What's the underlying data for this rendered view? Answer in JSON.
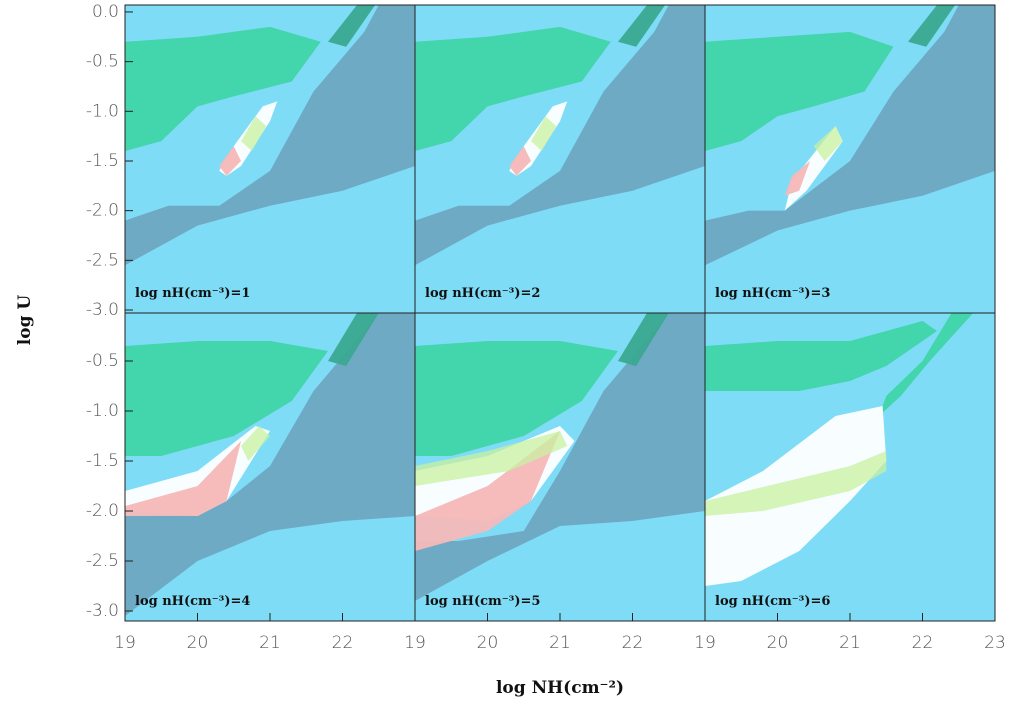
{
  "chart_data": {
    "type": "contour",
    "x_label": "log NH(cm⁻²)",
    "y_label": "log U",
    "background": "#7fdcf7",
    "panels": [
      {
        "label": "log nH(cm⁻³)=1",
        "xlim": [
          19,
          23
        ],
        "ylim": [
          -3.03,
          0.07
        ],
        "yticks": [
          {
            "value": 0,
            "label": "0.0"
          },
          -0.5,
          {
            "value": -1,
            "label": "-1.0"
          },
          -1.5,
          {
            "value": -2,
            "label": "-2.0"
          },
          -2.5,
          {
            "value": -3,
            "label": "-3.0"
          }
        ],
        "regions": [
          {
            "color": "#40d4a8",
            "x": [
              19,
              20,
              21,
              21.7,
              21.3,
              20.5,
              20,
              19.5,
              19
            ],
            "y": [
              -0.3,
              -0.25,
              -0.15,
              -0.3,
              -0.7,
              -0.85,
              -0.95,
              -1.3,
              -1.4
            ]
          },
          {
            "color": "#6fa6c2",
            "x": [
              19,
              20,
              21,
              22,
              23,
              23,
              22.5,
              22.3,
              21.6,
              21,
              20.3,
              19.6,
              19
            ],
            "y": [
              -2.55,
              -2.15,
              -1.95,
              -1.8,
              -1.55,
              0.07,
              0.07,
              -0.2,
              -0.8,
              -1.6,
              -1.95,
              -1.95,
              -2.1
            ]
          },
          {
            "color": "#3aa890",
            "x": [
              22.2,
              22.45,
              22.05,
              21.8
            ],
            "y": [
              0.07,
              0.07,
              -0.35,
              -0.3
            ]
          },
          {
            "color": "#ffffff",
            "x": [
              20.3,
              20.5,
              20.9,
              21.1,
              21,
              20.6,
              20.4
            ],
            "y": [
              -1.6,
              -1.35,
              -0.95,
              -0.9,
              -1.1,
              -1.55,
              -1.65
            ]
          },
          {
            "color": "#f5b8b8",
            "x": [
              20.3,
              20.5,
              20.6,
              20.4
            ],
            "y": [
              -1.55,
              -1.35,
              -1.5,
              -1.65
            ]
          },
          {
            "color": "#c8f0a0",
            "x": [
              20.6,
              20.8,
              20.95,
              20.75
            ],
            "y": [
              -1.3,
              -1.05,
              -1.15,
              -1.4
            ]
          }
        ]
      },
      {
        "label": "log nH(cm⁻³)=2",
        "xlim": [
          19,
          23
        ],
        "ylim": [
          -3.03,
          0.07
        ],
        "regions": [
          {
            "color": "#40d4a8",
            "x": [
              19,
              20,
              21,
              21.7,
              21.3,
              20.5,
              20,
              19.5,
              19
            ],
            "y": [
              -0.3,
              -0.25,
              -0.15,
              -0.3,
              -0.7,
              -0.85,
              -0.95,
              -1.3,
              -1.4
            ]
          },
          {
            "color": "#6fa6c2",
            "x": [
              19,
              20,
              21,
              22,
              23,
              23,
              22.5,
              22.3,
              21.6,
              21,
              20.3,
              19.6,
              19
            ],
            "y": [
              -2.55,
              -2.15,
              -1.95,
              -1.8,
              -1.55,
              0.07,
              0.07,
              -0.2,
              -0.8,
              -1.6,
              -1.95,
              -1.95,
              -2.1
            ]
          },
          {
            "color": "#3aa890",
            "x": [
              22.2,
              22.45,
              22.05,
              21.8
            ],
            "y": [
              0.07,
              0.07,
              -0.35,
              -0.3
            ]
          },
          {
            "color": "#ffffff",
            "x": [
              20.3,
              20.5,
              20.9,
              21.1,
              21,
              20.6,
              20.4
            ],
            "y": [
              -1.6,
              -1.35,
              -0.95,
              -0.9,
              -1.1,
              -1.55,
              -1.65
            ]
          },
          {
            "color": "#f5b8b8",
            "x": [
              20.3,
              20.5,
              20.6,
              20.4
            ],
            "y": [
              -1.55,
              -1.35,
              -1.5,
              -1.65
            ]
          },
          {
            "color": "#c8f0a0",
            "x": [
              20.6,
              20.8,
              20.95,
              20.75
            ],
            "y": [
              -1.3,
              -1.05,
              -1.15,
              -1.4
            ]
          }
        ]
      },
      {
        "label": "log nH(cm⁻³)=3",
        "xlim": [
          19,
          23
        ],
        "ylim": [
          -3.03,
          0.07
        ],
        "regions": [
          {
            "color": "#40d4a8",
            "x": [
              19,
              20,
              21,
              21.6,
              21.2,
              20.5,
              20,
              19.5,
              19
            ],
            "y": [
              -0.3,
              -0.25,
              -0.2,
              -0.35,
              -0.8,
              -0.95,
              -1.05,
              -1.3,
              -1.4
            ]
          },
          {
            "color": "#6fa6c2",
            "x": [
              19,
              20,
              21,
              22,
              23,
              23,
              22.5,
              22.3,
              21.6,
              21,
              20.1,
              19.6,
              19
            ],
            "y": [
              -2.55,
              -2.2,
              -2.0,
              -1.85,
              -1.6,
              0.07,
              0.07,
              -0.2,
              -0.8,
              -1.5,
              -2.0,
              -2.0,
              -2.1
            ]
          },
          {
            "color": "#3aa890",
            "x": [
              22.2,
              22.45,
              22.05,
              21.8
            ],
            "y": [
              0.07,
              0.07,
              -0.35,
              -0.3
            ]
          },
          {
            "color": "#ffffff",
            "x": [
              20.1,
              20.2,
              20.8,
              20.9,
              20.4
            ],
            "y": [
              -2.0,
              -1.7,
              -1.15,
              -1.3,
              -1.8
            ]
          },
          {
            "color": "#f5b8b8",
            "x": [
              20.1,
              20.2,
              20.45,
              20.3
            ],
            "y": [
              -1.85,
              -1.65,
              -1.5,
              -1.8
            ]
          },
          {
            "color": "#c8f0a0",
            "x": [
              20.5,
              20.8,
              20.9,
              20.65
            ],
            "y": [
              -1.35,
              -1.15,
              -1.3,
              -1.5
            ]
          }
        ]
      },
      {
        "label": "log nH(cm⁻³)=4",
        "xlim": [
          19,
          23
        ],
        "ylim": [
          -3.1,
          -0.02
        ],
        "yticks": [
          -0.5,
          {
            "value": -1,
            "label": "-1.0"
          },
          -1.5,
          {
            "value": -2,
            "label": "-2.0"
          },
          -2.5,
          {
            "value": -3,
            "label": "-3.0"
          }
        ],
        "xticks": [
          19,
          20,
          21,
          22
        ],
        "regions": [
          {
            "color": "#40d4a8",
            "x": [
              19,
              20,
              21,
              21.8,
              21.3,
              20.5,
              20,
              19.5,
              19
            ],
            "y": [
              -0.35,
              -0.3,
              -0.3,
              -0.4,
              -0.9,
              -1.25,
              -1.35,
              -1.45,
              -1.45
            ]
          },
          {
            "color": "#6fa6c2",
            "x": [
              19,
              20,
              21,
              22,
              23,
              23,
              22.5,
              22.3,
              21.6,
              21,
              20.4,
              19.6,
              19
            ],
            "y": [
              -3.05,
              -2.5,
              -2.2,
              -2.1,
              -2.05,
              -0.02,
              -0.02,
              -0.2,
              -0.8,
              -1.55,
              -1.9,
              -2.05,
              -2.05
            ]
          },
          {
            "color": "#3aa890",
            "x": [
              22.2,
              22.5,
              22.05,
              21.8
            ],
            "y": [
              -0.02,
              -0.02,
              -0.55,
              -0.5
            ]
          },
          {
            "color": "#ffffff",
            "x": [
              19,
              20,
              20.8,
              21,
              20.4,
              20,
              19
            ],
            "y": [
              -1.8,
              -1.6,
              -1.15,
              -1.2,
              -1.9,
              -2.05,
              -2.0
            ]
          },
          {
            "color": "#f5b8b8",
            "x": [
              19,
              20,
              20.6,
              20.4,
              20,
              19
            ],
            "y": [
              -1.95,
              -1.75,
              -1.3,
              -1.9,
              -2.05,
              -2.05
            ]
          },
          {
            "color": "#c8f0a0",
            "x": [
              20.6,
              20.85,
              21,
              20.7
            ],
            "y": [
              -1.35,
              -1.15,
              -1.25,
              -1.5
            ]
          }
        ]
      },
      {
        "label": "log nH(cm⁻³)=5",
        "xlim": [
          19,
          23
        ],
        "ylim": [
          -3.1,
          -0.02
        ],
        "xticks": [
          19,
          20,
          21,
          22
        ],
        "regions": [
          {
            "color": "#40d4a8",
            "x": [
              19,
              20,
              21,
              21.8,
              21.3,
              20.5,
              20,
              19.5,
              19
            ],
            "y": [
              -0.35,
              -0.3,
              -0.3,
              -0.4,
              -0.9,
              -1.25,
              -1.35,
              -1.45,
              -1.45
            ]
          },
          {
            "color": "#6fa6c2",
            "x": [
              19,
              20,
              21,
              22,
              23,
              23,
              22.5,
              22.3,
              21.6,
              21,
              20.5,
              19.6,
              19
            ],
            "y": [
              -2.9,
              -2.5,
              -2.15,
              -2.1,
              -2.0,
              -0.02,
              -0.02,
              -0.2,
              -0.8,
              -1.6,
              -2.2,
              -2.3,
              -2.3
            ]
          },
          {
            "color": "#3aa890",
            "x": [
              22.2,
              22.5,
              22.05,
              21.8
            ],
            "y": [
              -0.02,
              -0.02,
              -0.55,
              -0.5
            ]
          },
          {
            "color": "#ffffff",
            "x": [
              19,
              20,
              21,
              21.2,
              20.6,
              20,
              19
            ],
            "y": [
              -1.6,
              -1.45,
              -1.15,
              -1.3,
              -1.9,
              -2.1,
              -2.05
            ]
          },
          {
            "color": "#f5b8b8",
            "x": [
              19,
              20,
              21,
              20.6,
              20,
              19
            ],
            "y": [
              -2.05,
              -1.75,
              -1.2,
              -1.9,
              -2.2,
              -2.4
            ]
          },
          {
            "color": "#c8f0a0",
            "x": [
              19,
              20,
              21,
              21.1,
              20.3,
              19
            ],
            "y": [
              -1.55,
              -1.4,
              -1.2,
              -1.35,
              -1.6,
              -1.75
            ]
          }
        ]
      },
      {
        "label": "log nH(cm⁻³)=6",
        "xlim": [
          19,
          23
        ],
        "ylim": [
          -3.1,
          -0.02
        ],
        "xticks": [
          19,
          20,
          21,
          22,
          23
        ],
        "regions": [
          {
            "color": "#40d4a8",
            "x": [
              19,
              20,
              21,
              22,
              22.2,
              21.5,
              21,
              20.3,
              19.5,
              19
            ],
            "y": [
              -0.35,
              -0.3,
              -0.3,
              -0.1,
              -0.2,
              -0.55,
              -0.7,
              -0.8,
              -0.8,
              -0.8
            ]
          },
          {
            "color": "#40d4a8",
            "x": [
              22.4,
              22.7,
              22.1,
              21.7,
              21.4,
              21.5,
              22.0
            ],
            "y": [
              -0.02,
              -0.02,
              -0.5,
              -0.85,
              -1.05,
              -0.85,
              -0.5
            ]
          },
          {
            "color": "#ffffff",
            "x": [
              19,
              19.8,
              20.8,
              21.45,
              21.5,
              21,
              20.3,
              19.5,
              19
            ],
            "y": [
              -1.9,
              -1.6,
              -1.05,
              -0.95,
              -1.5,
              -1.9,
              -2.4,
              -2.7,
              -2.75
            ]
          },
          {
            "color": "#c8f0a0",
            "x": [
              19,
              21,
              21.5,
              21.5,
              21,
              19.8,
              19
            ],
            "y": [
              -1.9,
              -1.55,
              -1.4,
              -1.6,
              -1.8,
              -2.0,
              -2.05
            ]
          }
        ]
      }
    ]
  }
}
